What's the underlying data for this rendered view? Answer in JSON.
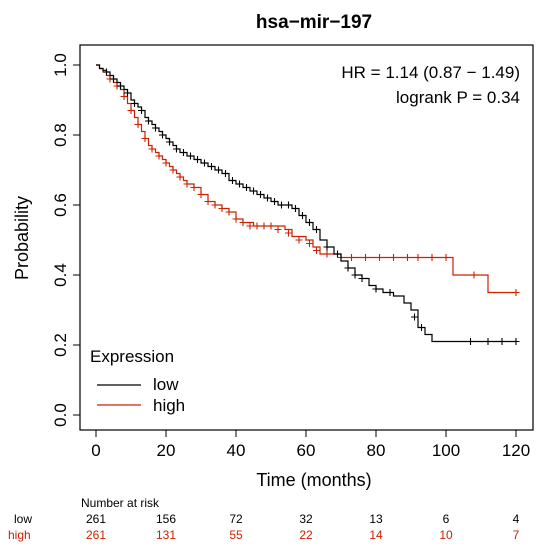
{
  "chart_data": {
    "type": "line",
    "title": "hsa−mir−197",
    "xlabel": "Time (months)",
    "ylabel": "Probability",
    "xlim": [
      0,
      120
    ],
    "ylim": [
      0,
      1
    ],
    "x_ticks": [
      "0",
      "20",
      "40",
      "60",
      "80",
      "100",
      "120"
    ],
    "y_ticks": [
      "0.0",
      "0.2",
      "0.4",
      "0.6",
      "0.8",
      "1.0"
    ],
    "annotations": [
      "HR = 1.14 (0.87 − 1.49)",
      "logrank P = 0.34"
    ],
    "legend": {
      "title": "Expression",
      "position": "bottom-left",
      "entries": [
        {
          "label": "low",
          "color": "#000000"
        },
        {
          "label": "high",
          "color": "#cc2200"
        }
      ]
    },
    "series": [
      {
        "name": "low",
        "color": "#000000",
        "steps": [
          [
            0,
            1.0
          ],
          [
            1,
            0.99
          ],
          [
            2,
            0.985
          ],
          [
            3,
            0.98
          ],
          [
            4,
            0.97
          ],
          [
            5,
            0.96
          ],
          [
            6,
            0.95
          ],
          [
            7,
            0.94
          ],
          [
            8,
            0.93
          ],
          [
            9,
            0.92
          ],
          [
            10,
            0.9
          ],
          [
            11,
            0.89
          ],
          [
            12,
            0.88
          ],
          [
            13,
            0.87
          ],
          [
            14,
            0.85
          ],
          [
            15,
            0.84
          ],
          [
            16,
            0.83
          ],
          [
            17,
            0.82
          ],
          [
            18,
            0.81
          ],
          [
            19,
            0.8
          ],
          [
            20,
            0.79
          ],
          [
            21,
            0.78
          ],
          [
            22,
            0.77
          ],
          [
            23,
            0.76
          ],
          [
            24,
            0.75
          ],
          [
            26,
            0.74
          ],
          [
            28,
            0.73
          ],
          [
            30,
            0.72
          ],
          [
            32,
            0.71
          ],
          [
            34,
            0.7
          ],
          [
            36,
            0.69
          ],
          [
            38,
            0.67
          ],
          [
            40,
            0.66
          ],
          [
            42,
            0.65
          ],
          [
            44,
            0.64
          ],
          [
            46,
            0.63
          ],
          [
            48,
            0.62
          ],
          [
            50,
            0.61
          ],
          [
            52,
            0.6
          ],
          [
            54,
            0.6
          ],
          [
            56,
            0.59
          ],
          [
            58,
            0.57
          ],
          [
            60,
            0.55
          ],
          [
            62,
            0.53
          ],
          [
            64,
            0.5
          ],
          [
            66,
            0.48
          ],
          [
            68,
            0.46
          ],
          [
            70,
            0.44
          ],
          [
            72,
            0.42
          ],
          [
            74,
            0.4
          ],
          [
            76,
            0.39
          ],
          [
            78,
            0.37
          ],
          [
            80,
            0.36
          ],
          [
            82,
            0.35
          ],
          [
            85,
            0.34
          ],
          [
            88,
            0.32
          ],
          [
            90,
            0.3
          ],
          [
            92,
            0.25
          ],
          [
            94,
            0.23
          ],
          [
            96,
            0.21
          ],
          [
            120,
            0.21
          ]
        ],
        "censored": [
          [
            3,
            0.98
          ],
          [
            5,
            0.96
          ],
          [
            7,
            0.94
          ],
          [
            9,
            0.92
          ],
          [
            11,
            0.89
          ],
          [
            13,
            0.87
          ],
          [
            15,
            0.84
          ],
          [
            17,
            0.82
          ],
          [
            19,
            0.8
          ],
          [
            21,
            0.78
          ],
          [
            23,
            0.76
          ],
          [
            25,
            0.75
          ],
          [
            27,
            0.74
          ],
          [
            29,
            0.73
          ],
          [
            31,
            0.72
          ],
          [
            33,
            0.71
          ],
          [
            35,
            0.7
          ],
          [
            37,
            0.69
          ],
          [
            39,
            0.67
          ],
          [
            41,
            0.66
          ],
          [
            43,
            0.65
          ],
          [
            45,
            0.64
          ],
          [
            47,
            0.63
          ],
          [
            49,
            0.62
          ],
          [
            51,
            0.61
          ],
          [
            53,
            0.6
          ],
          [
            55,
            0.6
          ],
          [
            57,
            0.59
          ],
          [
            59,
            0.57
          ],
          [
            61,
            0.55
          ],
          [
            63,
            0.53
          ],
          [
            66,
            0.48
          ],
          [
            69,
            0.46
          ],
          [
            72,
            0.42
          ],
          [
            74,
            0.4
          ],
          [
            76,
            0.39
          ],
          [
            80,
            0.36
          ],
          [
            84,
            0.35
          ],
          [
            91,
            0.28
          ],
          [
            93,
            0.25
          ],
          [
            107,
            0.21
          ],
          [
            112,
            0.21
          ],
          [
            116,
            0.21
          ],
          [
            120,
            0.21
          ]
        ]
      },
      {
        "name": "high",
        "color": "#cc2200",
        "steps": [
          [
            0,
            1.0
          ],
          [
            1,
            0.99
          ],
          [
            2,
            0.98
          ],
          [
            3,
            0.97
          ],
          [
            4,
            0.96
          ],
          [
            5,
            0.95
          ],
          [
            6,
            0.94
          ],
          [
            7,
            0.93
          ],
          [
            8,
            0.91
          ],
          [
            9,
            0.89
          ],
          [
            10,
            0.87
          ],
          [
            11,
            0.85
          ],
          [
            12,
            0.83
          ],
          [
            13,
            0.81
          ],
          [
            14,
            0.79
          ],
          [
            15,
            0.77
          ],
          [
            16,
            0.76
          ],
          [
            17,
            0.75
          ],
          [
            18,
            0.74
          ],
          [
            19,
            0.73
          ],
          [
            20,
            0.72
          ],
          [
            21,
            0.71
          ],
          [
            22,
            0.7
          ],
          [
            23,
            0.69
          ],
          [
            24,
            0.68
          ],
          [
            25,
            0.67
          ],
          [
            26,
            0.66
          ],
          [
            28,
            0.65
          ],
          [
            30,
            0.63
          ],
          [
            32,
            0.61
          ],
          [
            34,
            0.6
          ],
          [
            36,
            0.59
          ],
          [
            38,
            0.58
          ],
          [
            40,
            0.56
          ],
          [
            42,
            0.55
          ],
          [
            45,
            0.54
          ],
          [
            50,
            0.54
          ],
          [
            54,
            0.53
          ],
          [
            56,
            0.51
          ],
          [
            60,
            0.5
          ],
          [
            62,
            0.48
          ],
          [
            64,
            0.46
          ],
          [
            68,
            0.46
          ],
          [
            70,
            0.45
          ],
          [
            75,
            0.45
          ],
          [
            100,
            0.45
          ],
          [
            102,
            0.4
          ],
          [
            110,
            0.4
          ],
          [
            112,
            0.35
          ],
          [
            120,
            0.35
          ]
        ],
        "censored": [
          [
            4,
            0.96
          ],
          [
            6,
            0.94
          ],
          [
            8,
            0.91
          ],
          [
            10,
            0.87
          ],
          [
            12,
            0.83
          ],
          [
            14,
            0.79
          ],
          [
            16,
            0.76
          ],
          [
            18,
            0.74
          ],
          [
            20,
            0.72
          ],
          [
            22,
            0.7
          ],
          [
            24,
            0.68
          ],
          [
            26,
            0.66
          ],
          [
            28,
            0.65
          ],
          [
            30,
            0.63
          ],
          [
            32,
            0.61
          ],
          [
            34,
            0.6
          ],
          [
            36,
            0.59
          ],
          [
            38,
            0.58
          ],
          [
            40,
            0.56
          ],
          [
            42,
            0.55
          ],
          [
            44,
            0.54
          ],
          [
            46,
            0.54
          ],
          [
            48,
            0.54
          ],
          [
            50,
            0.54
          ],
          [
            52,
            0.53
          ],
          [
            55,
            0.52
          ],
          [
            58,
            0.5
          ],
          [
            61,
            0.49
          ],
          [
            63,
            0.47
          ],
          [
            66,
            0.46
          ],
          [
            70,
            0.45
          ],
          [
            73,
            0.45
          ],
          [
            77,
            0.45
          ],
          [
            81,
            0.45
          ],
          [
            85,
            0.45
          ],
          [
            89,
            0.45
          ],
          [
            92,
            0.45
          ],
          [
            96,
            0.45
          ],
          [
            100,
            0.45
          ],
          [
            108,
            0.4
          ],
          [
            120,
            0.35
          ]
        ]
      }
    ],
    "number_at_risk": {
      "header": "Number at risk",
      "times": [
        0,
        20,
        40,
        60,
        80,
        100,
        120
      ],
      "rows": [
        {
          "label": "low",
          "color": "#000000",
          "values": [
            "261",
            "156",
            "72",
            "32",
            "13",
            "6",
            "4"
          ]
        },
        {
          "label": "high",
          "color": "#cc2200",
          "values": [
            "261",
            "131",
            "55",
            "22",
            "14",
            "10",
            "7"
          ]
        }
      ]
    }
  }
}
